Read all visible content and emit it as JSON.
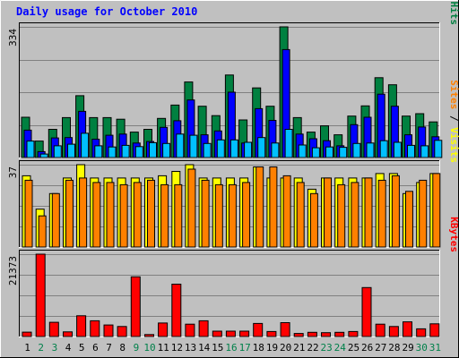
{
  "chart_data": {
    "type": "bar",
    "title": "Daily usage for October 2010",
    "categories": [
      "1",
      "2",
      "3",
      "4",
      "5",
      "6",
      "7",
      "8",
      "9",
      "10",
      "11",
      "12",
      "13",
      "14",
      "15",
      "16",
      "17",
      "18",
      "19",
      "20",
      "21",
      "22",
      "23",
      "24",
      "25",
      "26",
      "27",
      "28",
      "29",
      "30",
      "31"
    ],
    "weekend_days": [
      "2",
      "3",
      "9",
      "10",
      "16",
      "17",
      "23",
      "24",
      "30",
      "31"
    ],
    "panels": [
      {
        "ylabel_parts": [
          {
            "text": "Pages",
            "color": "#00c0ff"
          },
          {
            "text": " / ",
            "color": "#000000"
          },
          {
            "text": "Files",
            "color": "#0000ff"
          },
          {
            "text": " / ",
            "color": "#000000"
          },
          {
            "text": "Hits",
            "color": "#008040"
          }
        ],
        "ymax_label": "334",
        "ylim": [
          0,
          334
        ],
        "series": [
          {
            "name": "Hits",
            "color": "#008040",
            "values": [
              103,
              42,
              72,
              102,
              158,
              102,
              102,
              98,
              65,
              72,
              100,
              134,
              193,
              131,
              107,
              211,
              96,
              178,
              131,
              334,
              102,
              65,
              81,
              58,
              106,
              132,
              204,
              186,
              106,
              112,
              91
            ]
          },
          {
            "name": "Files",
            "color": "#0000ff",
            "values": [
              70,
              15,
              50,
              51,
              118,
              47,
              57,
              60,
              37,
              41,
              77,
              94,
              147,
              58,
              68,
              167,
              37,
              125,
              95,
              276,
              60,
              48,
              43,
              30,
              84,
              103,
              162,
              131,
              58,
              78,
              53
            ]
          },
          {
            "name": "Pages",
            "color": "#00c0ff",
            "values": [
              42,
              9,
              30,
              34,
              62,
              30,
              27,
              31,
              28,
              38,
              36,
              60,
              57,
              36,
              45,
              45,
              39,
              51,
              37,
              72,
              32,
              25,
              27,
              26,
              36,
              37,
              43,
              39,
              31,
              30,
              44
            ]
          }
        ]
      },
      {
        "ylabel_parts": [
          {
            "text": "Sites",
            "color": "#ff8000"
          },
          {
            "text": " / ",
            "color": "#000000"
          },
          {
            "text": "Visits",
            "color": "#ffff00"
          }
        ],
        "ymax_label": "37",
        "ylim": [
          0,
          37
        ],
        "series": [
          {
            "name": "Visits",
            "color": "#ffff00",
            "values": [
              32,
              17,
              24,
              31,
              37,
              31,
              31,
              31,
              31,
              31,
              32,
              34,
              37,
              31,
              31,
              31,
              31,
              36,
              31,
              31,
              31,
              26,
              31,
              31,
              31,
              31,
              33,
              33,
              24,
              29,
              33
            ]
          },
          {
            "name": "Sites",
            "color": "#ff8000",
            "values": [
              30,
              14,
              24,
              30,
              31,
              29,
              29,
              28,
              29,
              30,
              28,
              28,
              35,
              30,
              28,
              28,
              29,
              36,
              36,
              32,
              29,
              24,
              31,
              28,
              29,
              31,
              30,
              32,
              25,
              30,
              33
            ]
          }
        ]
      },
      {
        "ylabel_parts": [
          {
            "text": "KBytes",
            "color": "#ff0000"
          }
        ],
        "ymax_label": "21373",
        "ylim": [
          0,
          21373
        ],
        "series": [
          {
            "name": "KBytes",
            "color": "#ff0000",
            "values": [
              1130,
              21373,
              3700,
              1200,
              5400,
              4100,
              3000,
              2600,
              15500,
              500,
              3500,
              13600,
              3200,
              4100,
              1400,
              1400,
              1400,
              3400,
              1300,
              3600,
              800,
              1100,
              1000,
              1100,
              1300,
              12700,
              3200,
              2600,
              3800,
              2000,
              3300
            ]
          }
        ]
      }
    ]
  }
}
